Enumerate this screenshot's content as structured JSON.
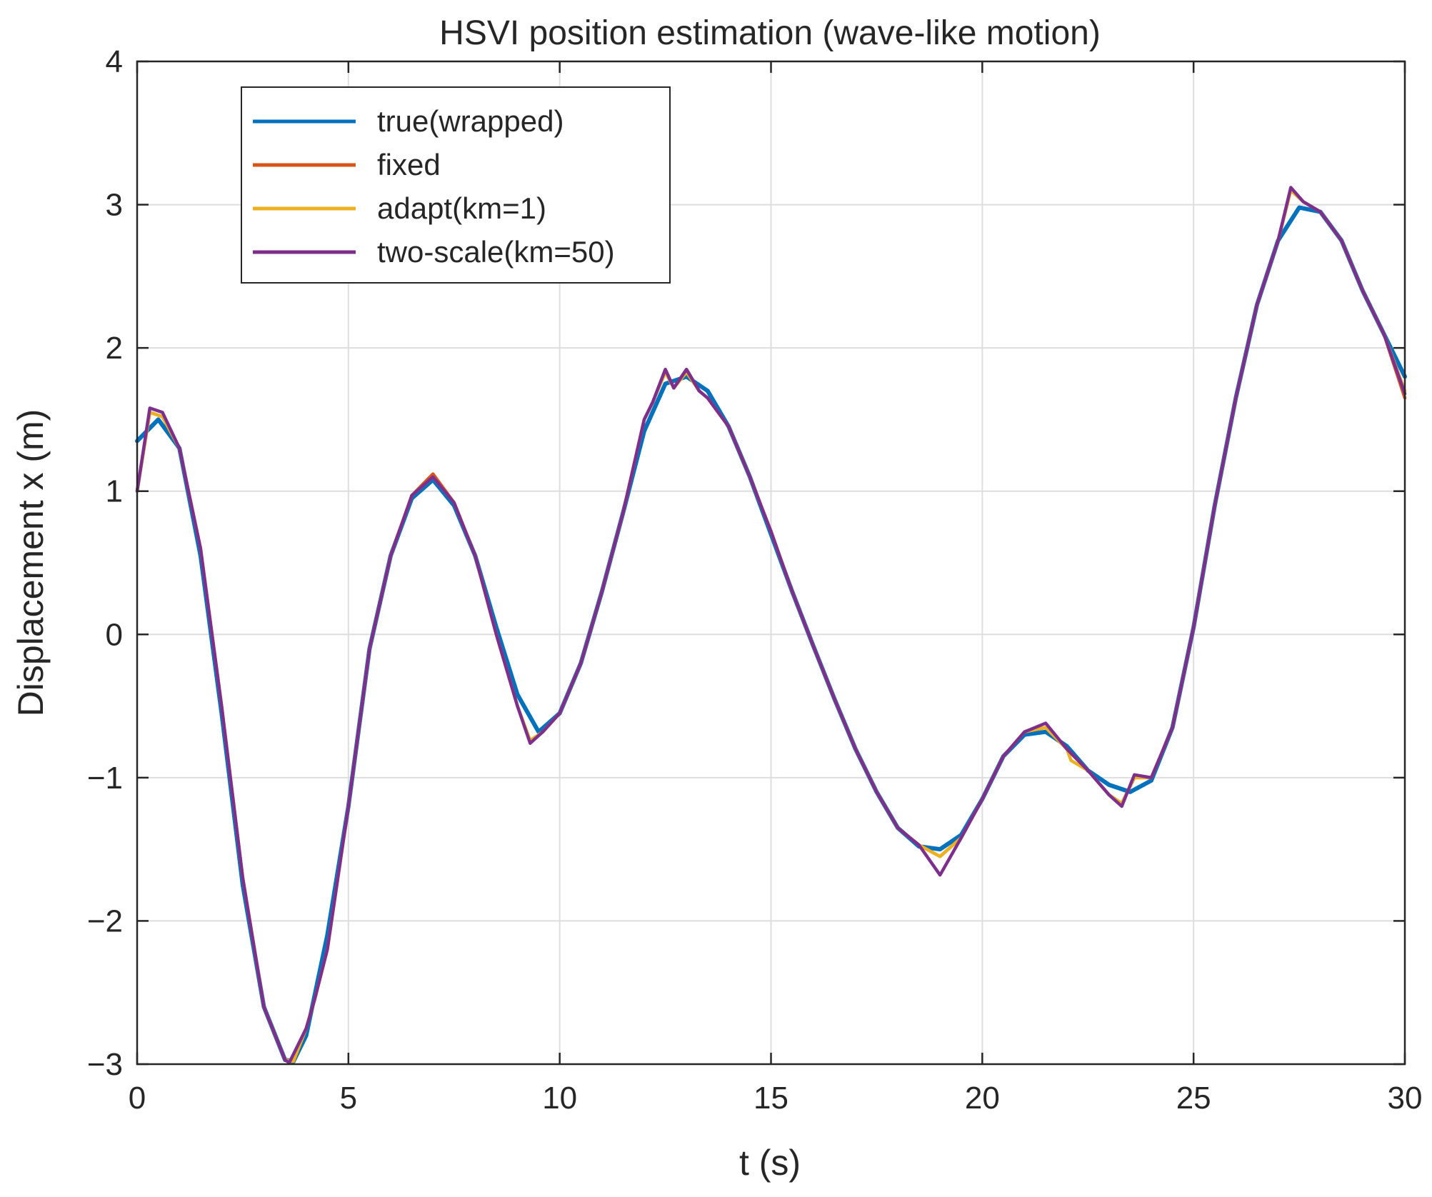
{
  "chart_data": {
    "type": "line",
    "title": "HSVI position estimation (wave-like motion)",
    "xlabel": "t (s)",
    "ylabel": "Displacement x (m)",
    "xlim": [
      0,
      30
    ],
    "ylim": [
      -3,
      4
    ],
    "xticks": [
      0,
      5,
      10,
      15,
      20,
      25,
      30
    ],
    "yticks": [
      -3,
      -2,
      -1,
      0,
      1,
      2,
      3,
      4
    ],
    "xtick_labels": [
      "0",
      "5",
      "10",
      "15",
      "20",
      "25",
      "30"
    ],
    "ytick_labels": [
      "−3",
      "−2",
      "−1",
      "0",
      "1",
      "2",
      "3",
      "4"
    ],
    "grid": true,
    "legend_position": "top-left",
    "series": [
      {
        "name": "true(wrapped)",
        "color": "#0072BD",
        "x": [
          0,
          0.5,
          1,
          1.5,
          2,
          2.5,
          3,
          3.5,
          3.7,
          4,
          4.5,
          5,
          5.5,
          6,
          6.5,
          7,
          7.5,
          8,
          8.5,
          9,
          9.5,
          10,
          10.5,
          11,
          11.5,
          12,
          12.5,
          13,
          13.5,
          14,
          14.5,
          15,
          15.5,
          16,
          16.5,
          17,
          17.5,
          18,
          18.5,
          19,
          19.5,
          20,
          20.5,
          21,
          21.5,
          22,
          22.5,
          23,
          23.5,
          24,
          24.5,
          25,
          25.5,
          26,
          26.5,
          27,
          27.5,
          28,
          28.5,
          29,
          29.5,
          30
        ],
        "y": [
          1.35,
          1.5,
          1.3,
          0.55,
          -0.55,
          -1.75,
          -2.6,
          -2.97,
          -2.98,
          -2.8,
          -2.1,
          -1.2,
          -0.1,
          0.55,
          0.95,
          1.08,
          0.9,
          0.55,
          0.05,
          -0.42,
          -0.68,
          -0.55,
          -0.2,
          0.3,
          0.85,
          1.42,
          1.75,
          1.8,
          1.7,
          1.45,
          1.1,
          0.7,
          0.3,
          -0.08,
          -0.45,
          -0.8,
          -1.1,
          -1.35,
          -1.48,
          -1.5,
          -1.4,
          -1.15,
          -0.85,
          -0.7,
          -0.68,
          -0.78,
          -0.95,
          -1.05,
          -1.1,
          -1.02,
          -0.65,
          0.05,
          0.9,
          1.65,
          2.3,
          2.75,
          2.98,
          2.95,
          2.75,
          2.4,
          2.1,
          1.8
        ]
      },
      {
        "name": "fixed",
        "color": "#D95319",
        "x": [
          0,
          0.3,
          0.6,
          1,
          1.5,
          2,
          2.5,
          3,
          3.5,
          3.7,
          4,
          4.2,
          4.5,
          5,
          5.5,
          6,
          6.5,
          7,
          7.5,
          8,
          8.5,
          9,
          9.3,
          9.6,
          10,
          10.5,
          11,
          11.5,
          12,
          12.2,
          12.5,
          12.7,
          13,
          13.3,
          13.5,
          14,
          14.5,
          15,
          15.5,
          16,
          16.5,
          17,
          17.5,
          18,
          18.5,
          19,
          19.5,
          20,
          20.5,
          21,
          21.5,
          22,
          22.5,
          23,
          23.3,
          23.6,
          24,
          24.5,
          25,
          25.5,
          26,
          26.5,
          27,
          27.3,
          27.6,
          28,
          28.5,
          29,
          29.5,
          30
        ],
        "y": [
          1.0,
          1.55,
          1.52,
          1.3,
          0.6,
          -0.5,
          -1.7,
          -2.6,
          -2.97,
          -2.98,
          -2.75,
          -2.55,
          -2.2,
          -1.2,
          -0.1,
          0.55,
          0.97,
          1.12,
          0.92,
          0.55,
          0.0,
          -0.5,
          -0.75,
          -0.68,
          -0.55,
          -0.2,
          0.3,
          0.85,
          1.5,
          1.62,
          1.85,
          1.72,
          1.85,
          1.7,
          1.65,
          1.45,
          1.1,
          0.72,
          0.3,
          -0.08,
          -0.45,
          -0.8,
          -1.1,
          -1.35,
          -1.47,
          -1.55,
          -1.42,
          -1.15,
          -0.85,
          -0.68,
          -0.65,
          -0.8,
          -0.95,
          -1.12,
          -1.18,
          -1.0,
          -1.0,
          -0.65,
          0.05,
          0.9,
          1.65,
          2.3,
          2.75,
          3.1,
          3.02,
          2.95,
          2.75,
          2.4,
          2.1,
          1.65
        ]
      },
      {
        "name": "adapt(km=1)",
        "color": "#EDB120",
        "x": [
          0,
          0.3,
          0.6,
          1,
          1.5,
          2,
          2.5,
          3,
          3.5,
          3.7,
          4,
          4.2,
          4.5,
          5,
          5.5,
          6,
          6.5,
          7,
          7.5,
          8,
          8.5,
          9,
          9.3,
          9.6,
          10,
          10.5,
          11,
          11.5,
          12,
          12.2,
          12.5,
          12.7,
          13,
          13.3,
          13.5,
          14,
          14.5,
          15,
          15.5,
          16,
          16.5,
          17,
          17.5,
          18,
          18.5,
          19,
          19.5,
          20,
          20.5,
          21,
          21.5,
          22,
          22.1,
          22.5,
          23,
          23.3,
          23.6,
          24,
          24.5,
          25,
          25.5,
          26,
          26.5,
          27,
          27.3,
          27.6,
          28,
          28.5,
          29,
          29.5,
          30
        ],
        "y": [
          1.0,
          1.55,
          1.52,
          1.3,
          0.6,
          -0.5,
          -1.7,
          -2.6,
          -2.97,
          -2.98,
          -2.75,
          -2.55,
          -2.2,
          -1.2,
          -0.1,
          0.55,
          0.97,
          1.1,
          0.92,
          0.55,
          0.0,
          -0.5,
          -0.74,
          -0.68,
          -0.55,
          -0.2,
          0.3,
          0.85,
          1.5,
          1.62,
          1.83,
          1.72,
          1.83,
          1.7,
          1.65,
          1.45,
          1.1,
          0.72,
          0.3,
          -0.08,
          -0.45,
          -0.8,
          -1.1,
          -1.35,
          -1.47,
          -1.55,
          -1.42,
          -1.15,
          -0.85,
          -0.68,
          -0.65,
          -0.8,
          -0.88,
          -0.95,
          -1.12,
          -1.18,
          -1.0,
          -1.0,
          -0.65,
          0.05,
          0.9,
          1.65,
          2.3,
          2.75,
          3.1,
          3.02,
          2.95,
          2.75,
          2.4,
          2.1,
          1.7
        ]
      },
      {
        "name": "two-scale(km=50)",
        "color": "#7E2F8E",
        "x": [
          0,
          0.3,
          0.6,
          1,
          1.5,
          2,
          2.5,
          3,
          3.5,
          3.6,
          4,
          4.2,
          4.5,
          5,
          5.5,
          6,
          6.5,
          7,
          7.5,
          8,
          8.5,
          9,
          9.3,
          9.6,
          10,
          10.5,
          11,
          11.5,
          12,
          12.2,
          12.5,
          12.7,
          13,
          13.3,
          13.5,
          14,
          14.5,
          15,
          15.5,
          16,
          16.5,
          17,
          17.5,
          18,
          18.5,
          19,
          19.5,
          20,
          20.5,
          21,
          21.5,
          22,
          22.5,
          23,
          23.3,
          23.6,
          24,
          24.5,
          25,
          25.5,
          26,
          26.5,
          27,
          27.3,
          27.6,
          28,
          28.5,
          29,
          29.5,
          30
        ],
        "y": [
          1.0,
          1.58,
          1.55,
          1.3,
          0.6,
          -0.5,
          -1.7,
          -2.6,
          -2.97,
          -2.99,
          -2.75,
          -2.55,
          -2.2,
          -1.2,
          -0.1,
          0.55,
          0.97,
          1.1,
          0.92,
          0.55,
          0.0,
          -0.5,
          -0.76,
          -0.68,
          -0.55,
          -0.2,
          0.3,
          0.85,
          1.5,
          1.62,
          1.85,
          1.72,
          1.85,
          1.7,
          1.65,
          1.45,
          1.1,
          0.72,
          0.3,
          -0.08,
          -0.45,
          -0.8,
          -1.1,
          -1.35,
          -1.47,
          -1.68,
          -1.42,
          -1.15,
          -0.85,
          -0.68,
          -0.62,
          -0.8,
          -0.95,
          -1.12,
          -1.2,
          -0.98,
          -1.0,
          -0.65,
          0.05,
          0.9,
          1.65,
          2.3,
          2.75,
          3.12,
          3.02,
          2.95,
          2.75,
          2.4,
          2.1,
          1.68
        ]
      }
    ]
  }
}
